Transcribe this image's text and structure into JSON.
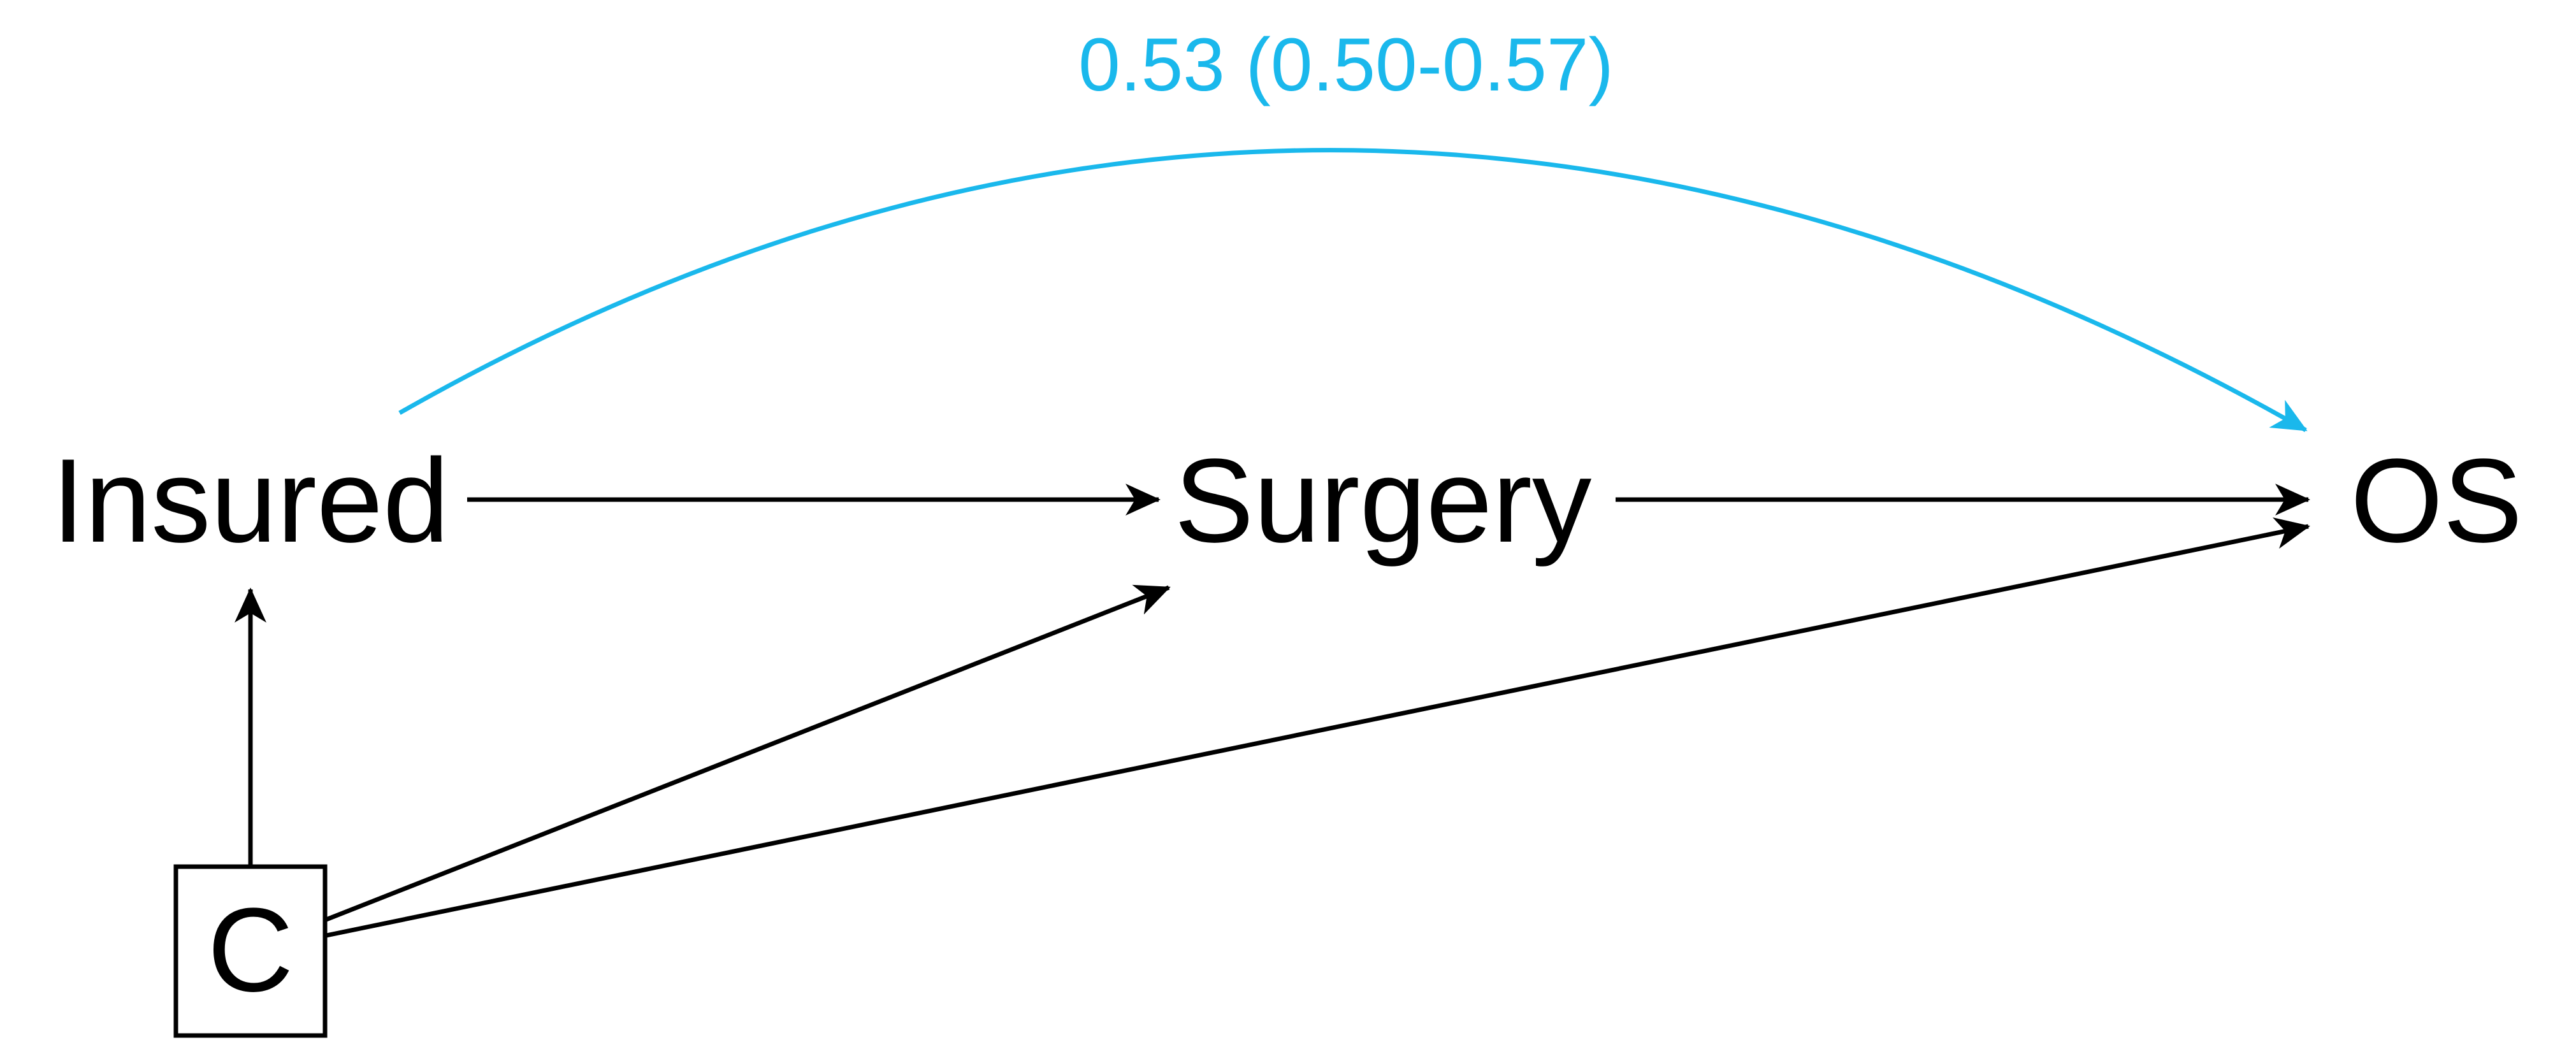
{
  "nodes": {
    "insured": "Insured",
    "surgery": "Surgery",
    "os": "OS",
    "confounders": "C"
  },
  "effect": {
    "label": "0.53 (0.50-0.57)",
    "color": "#1AB8EC"
  },
  "colors": {
    "edge": "#000000",
    "highlight": "#1AB8EC"
  },
  "edges": [
    {
      "from": "Insured",
      "to": "Surgery"
    },
    {
      "from": "Surgery",
      "to": "OS"
    },
    {
      "from": "C",
      "to": "Insured"
    },
    {
      "from": "C",
      "to": "Surgery"
    },
    {
      "from": "C",
      "to": "OS"
    },
    {
      "from": "Insured",
      "to": "OS",
      "highlight": true
    }
  ]
}
